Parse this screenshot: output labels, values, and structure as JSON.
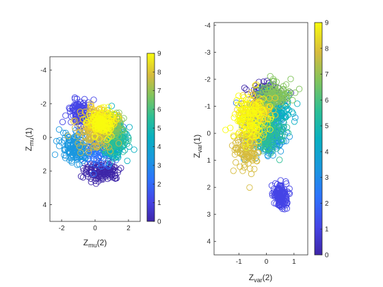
{
  "chart_data": [
    {
      "type": "scatter",
      "title": "",
      "xlabel": {
        "base": "Z",
        "sub": "mu",
        "tail": "(2)"
      },
      "ylabel": {
        "base": "Z",
        "sub": "mu",
        "tail": "(1)"
      },
      "xlim": [
        -2.7,
        2.7
      ],
      "ylim": [
        -4.8,
        5.0
      ],
      "y_reversed": true,
      "xticks": [
        -2,
        0,
        2
      ],
      "yticks": [
        -4,
        -2,
        0,
        2,
        4
      ],
      "marker": "open-circle",
      "colorbar": {
        "min": 0,
        "max": 9,
        "ticks": [
          0,
          1,
          2,
          3,
          4,
          5,
          6,
          7,
          8,
          9
        ],
        "colormap": "parula"
      },
      "clusters": [
        {
          "class": 0,
          "cx": 0.4,
          "cy": 2.0,
          "sx": 0.9,
          "sy": 0.5
        },
        {
          "class": 1,
          "cx": -0.9,
          "cy": -1.4,
          "sx": 0.5,
          "sy": 0.7
        },
        {
          "class": 2,
          "cx": 0.2,
          "cy": 0.6,
          "sx": 1.1,
          "sy": 0.8
        },
        {
          "class": 3,
          "cx": -1.2,
          "cy": 0.6,
          "sx": 0.7,
          "sy": 0.7
        },
        {
          "class": 4,
          "cx": 1.2,
          "cy": 0.3,
          "sx": 0.6,
          "sy": 0.9
        },
        {
          "class": 5,
          "cx": 1.0,
          "cy": 0.0,
          "sx": 0.7,
          "sy": 0.8
        },
        {
          "class": 6,
          "cx": 0.9,
          "cy": -0.8,
          "sx": 0.6,
          "sy": 0.6
        },
        {
          "class": 7,
          "cx": 0.0,
          "cy": -0.3,
          "sx": 0.9,
          "sy": 0.9
        },
        {
          "class": 8,
          "cx": 0.3,
          "cy": -1.0,
          "sx": 0.7,
          "sy": 0.5
        },
        {
          "class": 9,
          "cx": 0.4,
          "cy": -0.9,
          "sx": 0.6,
          "sy": 0.6
        }
      ]
    },
    {
      "type": "scatter",
      "title": "",
      "xlabel": {
        "base": "Z",
        "sub": "var",
        "tail": "(2)"
      },
      "ylabel": {
        "base": "Z",
        "sub": "var",
        "tail": "(1)"
      },
      "xlim": [
        -1.9,
        1.5
      ],
      "ylim": [
        -4.1,
        4.5
      ],
      "y_reversed": true,
      "xticks": [
        -1,
        0,
        1
      ],
      "yticks": [
        -4,
        -3,
        -2,
        -1,
        0,
        1,
        2,
        3,
        4
      ],
      "marker": "open-circle",
      "colorbar": {
        "min": 0,
        "max": 9,
        "ticks": [
          0,
          1,
          2,
          3,
          4,
          5,
          6,
          7,
          8,
          9
        ],
        "colormap": "parula"
      },
      "clusters": [
        {
          "class": 0,
          "cx": 0.0,
          "cy": -1.4,
          "sx": 0.5,
          "sy": 0.4
        },
        {
          "class": 1,
          "cx": 0.5,
          "cy": 2.3,
          "sx": 0.2,
          "sy": 0.4
        },
        {
          "class": 2,
          "cx": -0.1,
          "cy": -0.5,
          "sx": 0.5,
          "sy": 0.7
        },
        {
          "class": 3,
          "cx": 0.2,
          "cy": 0.2,
          "sx": 0.5,
          "sy": 0.6
        },
        {
          "class": 4,
          "cx": 0.3,
          "cy": -0.8,
          "sx": 0.5,
          "sy": 0.6
        },
        {
          "class": 5,
          "cx": 0.0,
          "cy": 0.0,
          "sx": 0.5,
          "sy": 0.6
        },
        {
          "class": 6,
          "cx": 0.2,
          "cy": -1.4,
          "sx": 0.5,
          "sy": 0.4
        },
        {
          "class": 7,
          "cx": -0.7,
          "cy": 0.5,
          "sx": 0.4,
          "sy": 0.7
        },
        {
          "class": 8,
          "cx": -0.4,
          "cy": -0.7,
          "sx": 0.5,
          "sy": 0.6
        },
        {
          "class": 9,
          "cx": -0.6,
          "cy": -0.5,
          "sx": 0.5,
          "sy": 0.7
        }
      ]
    }
  ]
}
